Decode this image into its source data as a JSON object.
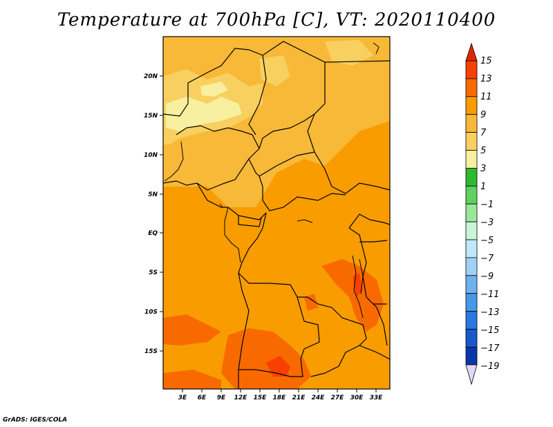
{
  "title": "Temperature at 700hPa [C], VT: 2020110400",
  "footer": "GrADS: IGES/COLA",
  "map": {
    "lat_labels": [
      "20N",
      "15N",
      "10N",
      "5N",
      "EQ",
      "5S",
      "10S",
      "15S"
    ],
    "lon_labels": [
      "3E",
      "6E",
      "9E",
      "12E",
      "15E",
      "18E",
      "21E",
      "24E",
      "27E",
      "30E",
      "33E"
    ]
  },
  "colorbar": {
    "levels": [
      "15",
      "13",
      "11",
      "9",
      "7",
      "5",
      "3",
      "1",
      "−1",
      "−3",
      "−5",
      "−7",
      "−9",
      "−11",
      "−13",
      "−15",
      "−17",
      "−19"
    ],
    "colors": {
      "overflow_high": "#e02800",
      "c13_15": "#f84000",
      "c11_13": "#f86a00",
      "c9_11": "#f89c00",
      "c7_9": "#f8b838",
      "c5_7": "#f8d060",
      "c3_5": "#f8f0a0",
      "c1_3": "#30b830",
      "cm1_1": "#60d060",
      "cm3_m1": "#98e898",
      "cm5_m3": "#c8f5d8",
      "cm7_m5": "#c0e8f8",
      "cm9_m7": "#a0d0f8",
      "cm11_m9": "#70b0f0",
      "cm13_m11": "#4898e8",
      "cm15_m13": "#2878e0",
      "cm17_m15": "#1858c8",
      "cm19_m17": "#0838a8",
      "underflow_low": "#0c0c70",
      "below_min": "#e0d8f8"
    }
  }
}
